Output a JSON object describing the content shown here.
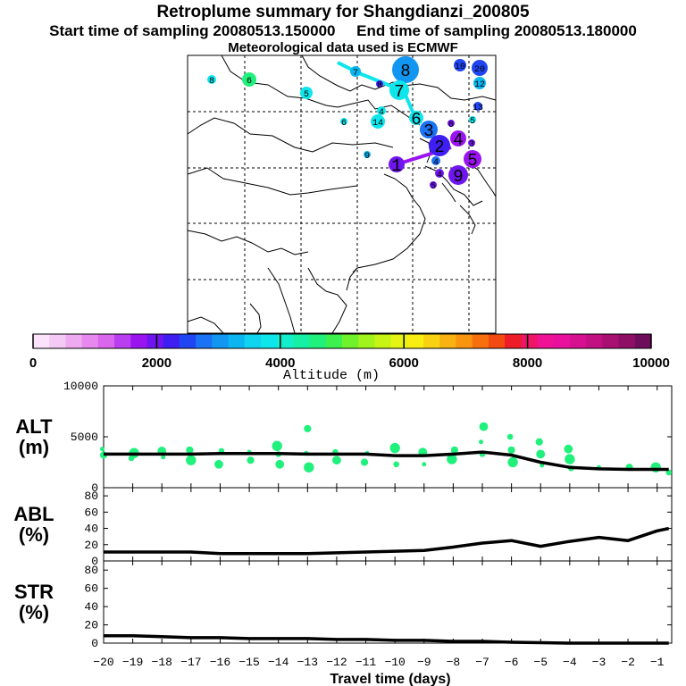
{
  "titles": {
    "line1": "Retroplume summary for Shangdianzi_200805",
    "line2": "Start time of sampling 20080513.150000     End time of sampling 20080513.180000",
    "line3": "Meteorological data used is ECMWF"
  },
  "colorbar": {
    "ticks": [
      "0",
      "2000",
      "4000",
      "6000",
      "8000",
      "10000"
    ],
    "label": "Altitude (m)",
    "colors": [
      "#fbe3fb",
      "#f5c9f5",
      "#eeaaf0",
      "#e688ee",
      "#d966ec",
      "#b93ef0",
      "#9a14f0",
      "#6f16ee",
      "#3e1ef0",
      "#2046f4",
      "#1a72f4",
      "#1196f2",
      "#0bb6f0",
      "#10d3f0",
      "#0ee6ec",
      "#13efcb",
      "#16f0a5",
      "#20f07c",
      "#3cf04e",
      "#6ff22c",
      "#a0f41c",
      "#c7f414",
      "#e6f414",
      "#f8ee12",
      "#f8d212",
      "#f8b212",
      "#f89410",
      "#f8700e",
      "#f24a10",
      "#ee1c26",
      "#ee1466",
      "#f01294",
      "#e8109c",
      "#d6108e",
      "#c01082",
      "#a81072",
      "#8e0e66",
      "#6e0c5c"
    ]
  },
  "map": {
    "labels": [
      {
        "t": "8",
        "c": "#1196f2",
        "big": true
      },
      {
        "t": "7",
        "c": "#0ee6ec",
        "big": true
      },
      {
        "t": "6",
        "c": "#0ee6ec",
        "big": true
      },
      {
        "t": "3",
        "c": "#1a72f4",
        "big": true
      },
      {
        "t": "2",
        "c": "#3e1ef0",
        "big": true
      },
      {
        "t": "1",
        "c": "#6f16ee",
        "big": true
      },
      {
        "t": "4",
        "c": "#9a14f0",
        "big": true
      },
      {
        "t": "5",
        "c": "#9a14f0",
        "big": true
      },
      {
        "t": "9",
        "c": "#6f16ee",
        "big": true
      },
      {
        "t": "20",
        "c": "#2046f4",
        "big": false
      },
      {
        "t": "10",
        "c": "#2046f4",
        "big": false
      },
      {
        "t": "13",
        "c": "#2046f4",
        "big": false
      },
      {
        "t": "12",
        "c": "#0bb6f0",
        "big": false
      },
      {
        "t": "8",
        "c": "#0ee6ec",
        "big": false
      },
      {
        "t": "6",
        "c": "#20f07c",
        "big": false
      },
      {
        "t": "5",
        "c": "#0ee6ec",
        "big": false
      },
      {
        "t": "6",
        "c": "#0ee6ec",
        "big": false
      },
      {
        "t": "14",
        "c": "#0ee6ec",
        "big": false
      },
      {
        "t": "4",
        "c": "#0ee6ec",
        "big": false
      },
      {
        "t": "9",
        "c": "#0bb6f0",
        "big": false
      },
      {
        "t": "7",
        "c": "#0bb6f0",
        "big": false
      },
      {
        "t": "8",
        "c": "#3e1ef0",
        "big": false
      },
      {
        "t": "6",
        "c": "#6f16ee",
        "big": false
      },
      {
        "t": "4",
        "c": "#6f16ee",
        "big": false
      },
      {
        "t": "4",
        "c": "#1a72f4",
        "big": false
      },
      {
        "t": "3",
        "c": "#6f16ee",
        "big": false
      },
      {
        "t": "5",
        "c": "#6f16ee",
        "big": false
      },
      {
        "t": "5",
        "c": "#0ee6ec",
        "big": false
      }
    ]
  },
  "chart_data": [
    {
      "type": "line",
      "panel": "ALT",
      "ylabel": "ALT\n(m)",
      "ylabel_line1": "ALT",
      "ylabel_line2": "(m)",
      "ylim": [
        0,
        10000
      ],
      "yticks": [
        0,
        5000,
        10000
      ],
      "ytick_labels": [
        "0",
        "5000",
        "10000"
      ],
      "x": [
        -20,
        -19,
        -18,
        -17,
        -16,
        -15,
        -14,
        -13,
        -12,
        -11,
        -10,
        -9,
        -8,
        -7,
        -6,
        -5,
        -4,
        -3,
        -2,
        -1,
        -0.6
      ],
      "values": [
        3300,
        3300,
        3300,
        3300,
        3350,
        3350,
        3350,
        3300,
        3300,
        3300,
        3150,
        3150,
        3300,
        3500,
        3200,
        2500,
        2000,
        1850,
        1800,
        1800,
        1800
      ],
      "scatter_color": "#20f07c",
      "scatter": [
        [
          -20,
          3800
        ],
        [
          -20,
          3200
        ],
        [
          -19,
          3400
        ],
        [
          -19,
          2900
        ],
        [
          -18,
          3600
        ],
        [
          -18,
          3000
        ],
        [
          -17,
          3700
        ],
        [
          -17,
          2700
        ],
        [
          -16,
          3600
        ],
        [
          -16,
          2300
        ],
        [
          -15,
          3500
        ],
        [
          -15,
          2700
        ],
        [
          -14,
          4100
        ],
        [
          -14,
          3300
        ],
        [
          -14,
          2300
        ],
        [
          -13,
          3400
        ],
        [
          -13,
          5800
        ],
        [
          -13,
          2000
        ],
        [
          -12,
          3500
        ],
        [
          -12,
          2700
        ],
        [
          -11,
          3400
        ],
        [
          -11,
          2500
        ],
        [
          -10,
          3900
        ],
        [
          -10,
          2300
        ],
        [
          -9,
          3500
        ],
        [
          -9,
          2300
        ],
        [
          -8,
          3700
        ],
        [
          -8,
          2800
        ],
        [
          -7,
          3300
        ],
        [
          -7,
          6000
        ],
        [
          -7,
          4500
        ],
        [
          -6,
          3700
        ],
        [
          -6,
          2500
        ],
        [
          -6,
          5000
        ],
        [
          -5,
          3300
        ],
        [
          -5,
          2200
        ],
        [
          -5,
          4500
        ],
        [
          -4,
          2800
        ],
        [
          -4,
          1900
        ],
        [
          -4,
          3800
        ],
        [
          -3,
          2000
        ],
        [
          -2,
          2000
        ],
        [
          -1,
          2000
        ],
        [
          -0.6,
          1500
        ]
      ]
    },
    {
      "type": "line",
      "panel": "ABL",
      "ylabel": "ABL\n(%)",
      "ylabel_line1": "ABL",
      "ylabel_line2": "(%)",
      "ylim": [
        0,
        90
      ],
      "yticks": [
        0,
        20,
        40,
        60,
        80
      ],
      "ytick_labels": [
        "0",
        "20",
        "40",
        "60",
        "80"
      ],
      "x": [
        -20,
        -19,
        -18,
        -17,
        -16,
        -15,
        -14,
        -13,
        -12,
        -11,
        -10,
        -9,
        -8,
        -7,
        -6,
        -5,
        -4,
        -3,
        -2,
        -1,
        -0.6
      ],
      "values": [
        11,
        11,
        11,
        11,
        9,
        9,
        9,
        9,
        10,
        11,
        12,
        13,
        17,
        22,
        25,
        18,
        24,
        29,
        25,
        37,
        40
      ]
    },
    {
      "type": "line",
      "panel": "STR",
      "ylabel": "STR\n(%)",
      "ylabel_line1": "STR",
      "ylabel_line2": "(%)",
      "ylim": [
        0,
        90
      ],
      "yticks": [
        0,
        20,
        40,
        60,
        80
      ],
      "ytick_labels": [
        "0",
        "20",
        "40",
        "60",
        "80"
      ],
      "x": [
        -20,
        -19,
        -18,
        -17,
        -16,
        -15,
        -14,
        -13,
        -12,
        -11,
        -10,
        -9,
        -8,
        -7,
        -6,
        -5,
        -4,
        -3,
        -2,
        -1,
        -0.6
      ],
      "values": [
        8,
        8,
        7,
        6,
        6,
        5,
        5,
        5,
        4,
        4,
        3,
        3,
        2,
        2,
        1,
        0.5,
        0,
        0,
        0,
        0,
        0
      ]
    }
  ],
  "xaxis": {
    "ticks": [
      -20,
      -19,
      -18,
      -17,
      -16,
      -15,
      -14,
      -13,
      -12,
      -11,
      -10,
      -9,
      -8,
      -7,
      -6,
      -5,
      -4,
      -3,
      -2,
      -1
    ],
    "tick_labels": [
      "−20",
      "−19",
      "−18",
      "−17",
      "−16",
      "−15",
      "−14",
      "−13",
      "−12",
      "−11",
      "−10",
      "−9",
      "−8",
      "−7",
      "−6",
      "−5",
      "−4",
      "−3",
      "−2",
      "−1"
    ],
    "label": "Travel time (days)"
  }
}
